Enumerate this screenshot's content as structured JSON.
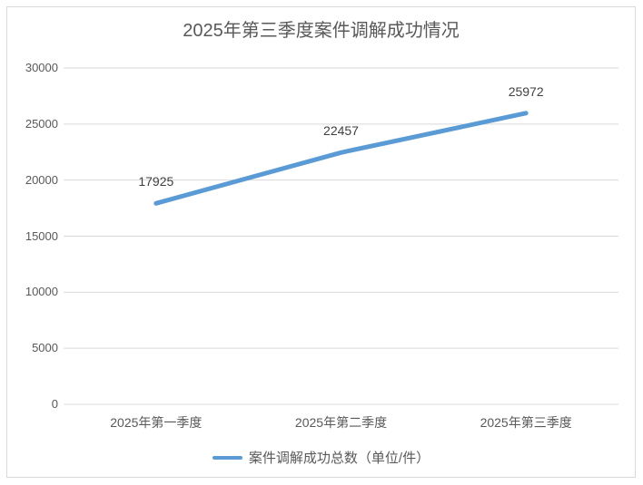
{
  "chart_data": {
    "type": "line",
    "title": "2025年第三季度案件调解成功情况",
    "categories": [
      "2025年第一季度",
      "2025年第二季度",
      "2025年第三季度"
    ],
    "series": [
      {
        "name": "案件调解成功总数（单位/件）",
        "values": [
          17925,
          22457,
          25972
        ],
        "color": "#5b9bd5"
      }
    ],
    "data_labels": [
      "17925",
      "22457",
      "25972"
    ],
    "ylim": [
      0,
      30000
    ],
    "yticks": [
      0,
      5000,
      10000,
      15000,
      20000,
      25000,
      30000
    ],
    "ytick_labels": [
      "0",
      "5000",
      "10000",
      "15000",
      "20000",
      "25000",
      "30000"
    ],
    "xlabel": "",
    "ylabel": "",
    "grid": true,
    "legend_position": "bottom"
  },
  "colors": {
    "series_line": "#5b9bd5",
    "gridline": "#d9d9d9",
    "chart_border": "#d9d9d9",
    "title_text": "#595959",
    "axis_text": "#595959",
    "data_label_text": "#404040"
  }
}
